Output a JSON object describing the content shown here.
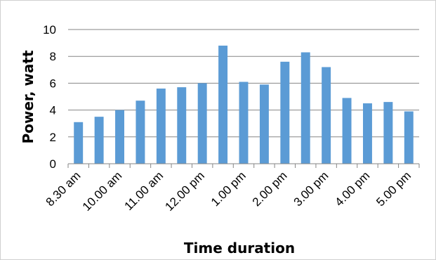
{
  "chart_data": {
    "type": "bar",
    "title": "",
    "xlabel": "Time duration",
    "ylabel": "Power, watt",
    "ylim": [
      0,
      10
    ],
    "yticks": [
      "0",
      "2",
      "4",
      "6",
      "8",
      "10"
    ],
    "grid": true,
    "legend": "none",
    "bar_color": "#5B9BD5",
    "categories": [
      "8.30 am",
      "",
      "10.00 am",
      "",
      "11.00 am",
      "",
      "12.00 pm",
      "",
      "1.00 pm",
      "",
      "2.00 pm",
      "",
      "3.00 pm",
      "",
      "4.00 pm",
      "",
      "5.00 pm"
    ],
    "values": [
      3.1,
      3.5,
      4.0,
      4.7,
      5.6,
      5.7,
      6.0,
      8.8,
      6.1,
      5.9,
      7.6,
      8.3,
      7.2,
      4.9,
      4.5,
      4.6,
      3.9
    ]
  }
}
